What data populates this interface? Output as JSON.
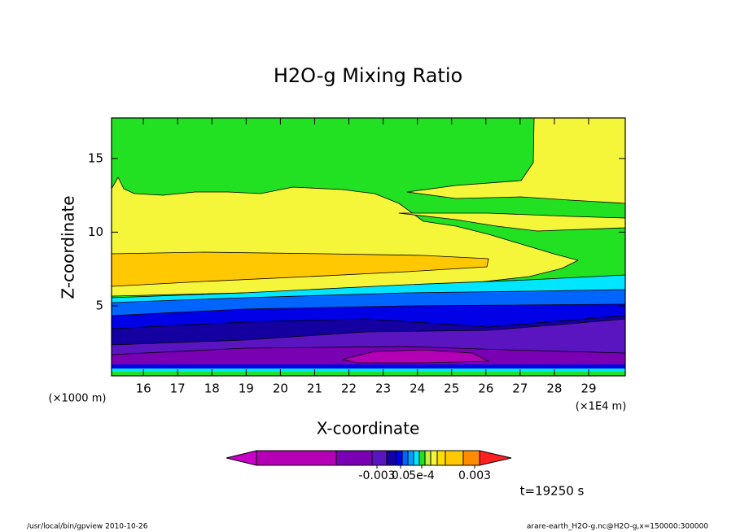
{
  "chart_data": {
    "type": "contour",
    "title": "H2O-g Mixing Ratio",
    "x_label": "X-coordinate",
    "y_label": "Z-coordinate",
    "x_unit": "(×1E4 m)",
    "y_unit": "(×1000 m)",
    "xlim": [
      15.07,
      30.07
    ],
    "ylim": [
      0.25,
      17.75
    ],
    "xticks": [
      16,
      17,
      18,
      19,
      20,
      21,
      22,
      23,
      24,
      25,
      26,
      27,
      28,
      29
    ],
    "yticks": [
      5,
      10,
      15
    ],
    "colorbar_ticks": [
      {
        "value": -0.003,
        "label": "-0.003"
      },
      {
        "value": 0,
        "label": "0.0"
      },
      {
        "value": 0.0005,
        "label": "5e-4"
      },
      {
        "value": 0.003,
        "label": "0.003"
      }
    ],
    "annotation": "t=19250 s",
    "footer_left": "/usr/local/bin/gpview  2010-10-26",
    "footer_right": "arare-earth_H2O-g.nc@H2O-g,x=150000:300000"
  }
}
